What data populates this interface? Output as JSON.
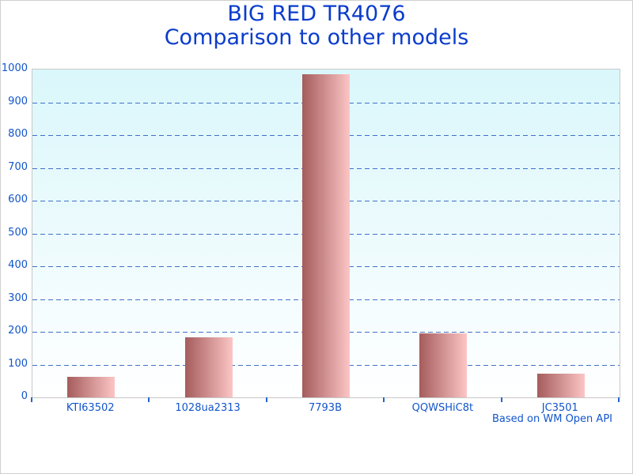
{
  "title": {
    "line1": "BIG RED TR4076",
    "line2": "Comparison to other models"
  },
  "footer": "Based on WM Open API",
  "chart_data": {
    "type": "bar",
    "title": "BIG RED TR4076",
    "subtitle": "Comparison to other models",
    "categories": [
      "KTI63502",
      "1028ua2313",
      "7793B",
      "QQWSHiC8t",
      "JC3501"
    ],
    "values": [
      63,
      182,
      985,
      195,
      72
    ],
    "xlabel": "",
    "ylabel": "",
    "ylim": [
      0,
      1000
    ],
    "y_tick_step": 100,
    "y_tick_labels": [
      "0",
      "100",
      "200",
      "300",
      "400",
      "500",
      "600",
      "700",
      "800",
      "900",
      "1000"
    ],
    "grid": "horizontal dashed lines, on",
    "legend": "none",
    "annotation": "Based on WM Open API",
    "colors": {
      "title_text": "#0a3ccc",
      "axis_text": "#1155cc",
      "gridline": "#4070c8",
      "tick_mark": "#2266cc",
      "bar_gradient_left": "#a55c5c",
      "bar_gradient_right": "#fcc5c5",
      "plot_bg_top": "#daf7fb",
      "plot_bg_bottom": "#ffffff",
      "plot_border": "#c8c8c8"
    }
  }
}
